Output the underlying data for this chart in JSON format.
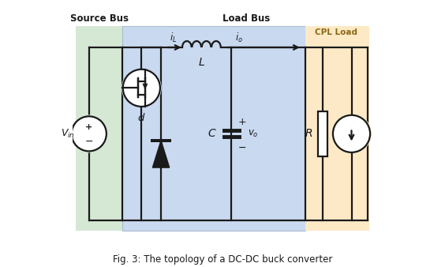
{
  "fig_width": 5.64,
  "fig_height": 3.38,
  "dpi": 100,
  "bg_color": "#ffffff",
  "green_bg": "#d5e8d4",
  "blue_bg": "#c9d9f0",
  "yellow_bg": "#fde9c6",
  "source_bus_label": "Source Bus",
  "load_bus_label": "Load Bus",
  "cpl_label": "CPL Load",
  "caption": "Fig. 3: The topology of a DC-DC buck converter",
  "line_color": "#1a1a1a",
  "lw": 1.6
}
